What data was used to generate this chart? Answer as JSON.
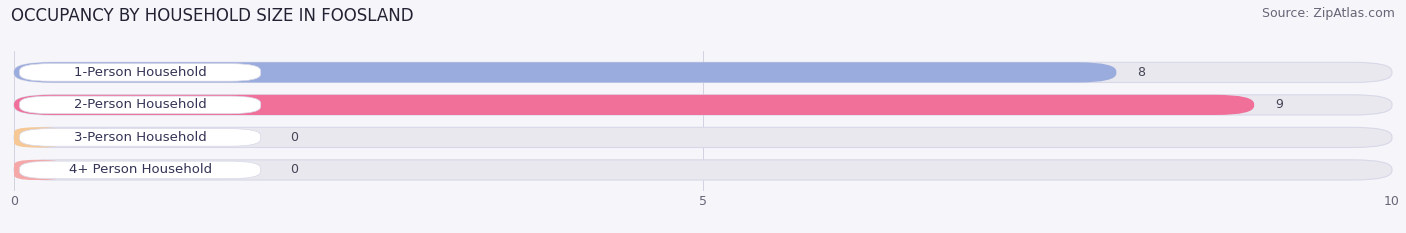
{
  "title": "OCCUPANCY BY HOUSEHOLD SIZE IN FOOSLAND",
  "source": "Source: ZipAtlas.com",
  "categories": [
    "1-Person Household",
    "2-Person Household",
    "3-Person Household",
    "4+ Person Household"
  ],
  "values": [
    8,
    9,
    0,
    0
  ],
  "bar_colors": [
    "#9aabdd",
    "#f07099",
    "#f5c896",
    "#f5a8a8"
  ],
  "label_box_color": "#ffffff",
  "xlim": [
    0,
    10
  ],
  "xticks": [
    0,
    5,
    10
  ],
  "background_color": "#f5f5fa",
  "bar_background_color": "#e8e8ee",
  "bar_border_color": "#d8d8e8",
  "title_fontsize": 12,
  "source_fontsize": 9,
  "label_fontsize": 9.5,
  "value_fontsize": 9,
  "label_color": "#333355"
}
